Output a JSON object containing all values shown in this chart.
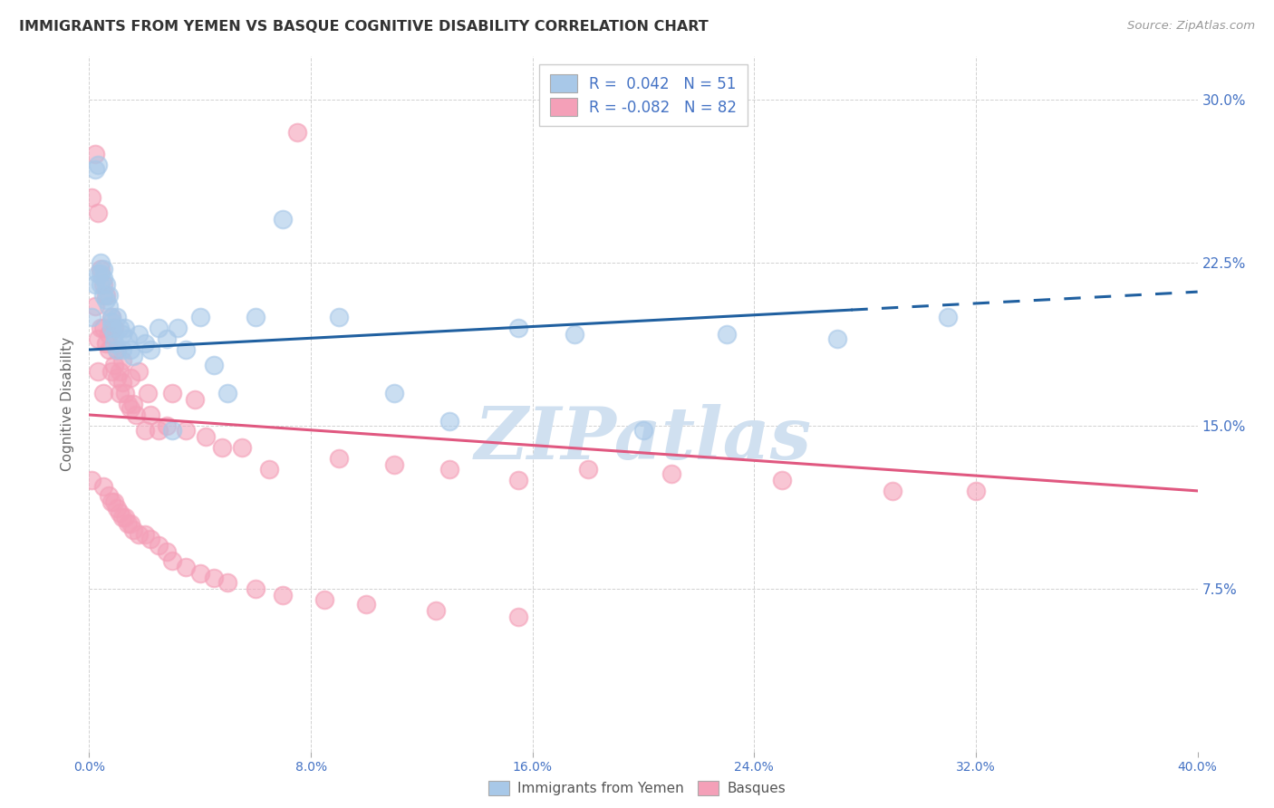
{
  "title": "IMMIGRANTS FROM YEMEN VS BASQUE COGNITIVE DISABILITY CORRELATION CHART",
  "source": "Source: ZipAtlas.com",
  "ylabel": "Cognitive Disability",
  "ytick_labels": [
    "7.5%",
    "15.0%",
    "22.5%",
    "30.0%"
  ],
  "ytick_values": [
    0.075,
    0.15,
    0.225,
    0.3
  ],
  "xtick_values": [
    0.0,
    0.08,
    0.16,
    0.24,
    0.32,
    0.4
  ],
  "xlim": [
    0.0,
    0.4
  ],
  "ylim": [
    0.0,
    0.32
  ],
  "blue_color": "#a8c8e8",
  "pink_color": "#f4a0b8",
  "blue_line_color": "#2060a0",
  "pink_line_color": "#e05880",
  "watermark": "ZIPatlas",
  "watermark_color": "#d0e0f0",
  "legend1_label": "Immigrants from Yemen",
  "legend2_label": "Basques",
  "blue_R": 0.042,
  "blue_N": 51,
  "pink_R": -0.082,
  "pink_N": 82,
  "blue_points_x": [
    0.001,
    0.002,
    0.002,
    0.003,
    0.003,
    0.004,
    0.004,
    0.004,
    0.005,
    0.005,
    0.005,
    0.006,
    0.006,
    0.007,
    0.007,
    0.008,
    0.008,
    0.008,
    0.009,
    0.009,
    0.01,
    0.01,
    0.011,
    0.012,
    0.012,
    0.013,
    0.014,
    0.015,
    0.016,
    0.018,
    0.02,
    0.022,
    0.025,
    0.028,
    0.03,
    0.032,
    0.035,
    0.04,
    0.045,
    0.05,
    0.06,
    0.07,
    0.09,
    0.11,
    0.13,
    0.155,
    0.175,
    0.2,
    0.23,
    0.27,
    0.31
  ],
  "blue_points_y": [
    0.2,
    0.268,
    0.215,
    0.27,
    0.22,
    0.225,
    0.22,
    0.215,
    0.222,
    0.218,
    0.21,
    0.215,
    0.208,
    0.21,
    0.205,
    0.2,
    0.198,
    0.195,
    0.192,
    0.188,
    0.185,
    0.2,
    0.195,
    0.192,
    0.185,
    0.195,
    0.19,
    0.185,
    0.182,
    0.192,
    0.188,
    0.185,
    0.195,
    0.19,
    0.148,
    0.195,
    0.185,
    0.2,
    0.178,
    0.165,
    0.2,
    0.245,
    0.2,
    0.165,
    0.152,
    0.195,
    0.192,
    0.148,
    0.192,
    0.19,
    0.2
  ],
  "pink_points_x": [
    0.001,
    0.001,
    0.002,
    0.002,
    0.003,
    0.003,
    0.003,
    0.004,
    0.004,
    0.005,
    0.005,
    0.005,
    0.006,
    0.006,
    0.007,
    0.007,
    0.008,
    0.008,
    0.009,
    0.009,
    0.01,
    0.01,
    0.011,
    0.011,
    0.012,
    0.012,
    0.013,
    0.014,
    0.015,
    0.015,
    0.016,
    0.017,
    0.018,
    0.02,
    0.021,
    0.022,
    0.025,
    0.028,
    0.03,
    0.035,
    0.038,
    0.042,
    0.048,
    0.055,
    0.065,
    0.075,
    0.09,
    0.11,
    0.13,
    0.155,
    0.18,
    0.21,
    0.25,
    0.29,
    0.005,
    0.007,
    0.008,
    0.009,
    0.01,
    0.011,
    0.012,
    0.013,
    0.014,
    0.015,
    0.016,
    0.018,
    0.02,
    0.022,
    0.025,
    0.028,
    0.03,
    0.035,
    0.04,
    0.045,
    0.05,
    0.06,
    0.07,
    0.085,
    0.1,
    0.125,
    0.155,
    0.32
  ],
  "pink_points_y": [
    0.255,
    0.125,
    0.275,
    0.205,
    0.175,
    0.248,
    0.19,
    0.222,
    0.195,
    0.215,
    0.195,
    0.165,
    0.21,
    0.188,
    0.185,
    0.192,
    0.2,
    0.175,
    0.195,
    0.178,
    0.172,
    0.185,
    0.175,
    0.165,
    0.18,
    0.17,
    0.165,
    0.16,
    0.172,
    0.158,
    0.16,
    0.155,
    0.175,
    0.148,
    0.165,
    0.155,
    0.148,
    0.15,
    0.165,
    0.148,
    0.162,
    0.145,
    0.14,
    0.14,
    0.13,
    0.285,
    0.135,
    0.132,
    0.13,
    0.125,
    0.13,
    0.128,
    0.125,
    0.12,
    0.122,
    0.118,
    0.115,
    0.115,
    0.112,
    0.11,
    0.108,
    0.108,
    0.105,
    0.105,
    0.102,
    0.1,
    0.1,
    0.098,
    0.095,
    0.092,
    0.088,
    0.085,
    0.082,
    0.08,
    0.078,
    0.075,
    0.072,
    0.07,
    0.068,
    0.065,
    0.062,
    0.12
  ]
}
